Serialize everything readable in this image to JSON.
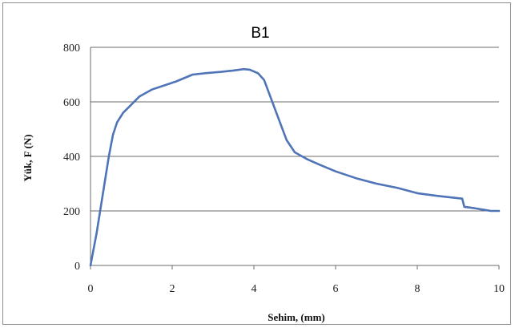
{
  "chart_data": {
    "type": "line",
    "title": "B1",
    "xlabel": "Sehim, (mm)",
    "ylabel": "Yük, F (N)",
    "xlim": [
      0,
      10
    ],
    "ylim": [
      0,
      800
    ],
    "xticks": [
      "0",
      "2",
      "4",
      "6",
      "8",
      "10"
    ],
    "yticks": [
      "0",
      "200",
      "400",
      "600",
      "800"
    ],
    "grid": "horizontal",
    "legend": "none",
    "series": [
      {
        "color": "#4f74b8",
        "x": [
          0,
          0.15,
          0.3,
          0.45,
          0.55,
          0.65,
          0.8,
          1.0,
          1.2,
          1.5,
          1.8,
          2.1,
          2.5,
          2.8,
          3.2,
          3.5,
          3.75,
          3.9,
          4.1,
          4.25,
          4.4,
          4.6,
          4.8,
          5.0,
          5.3,
          5.6,
          6.0,
          6.5,
          7.0,
          7.5,
          8.0,
          8.5,
          9.1,
          9.15,
          9.4,
          9.6,
          9.8,
          10.0
        ],
        "y": [
          0,
          120,
          260,
          400,
          480,
          525,
          560,
          590,
          620,
          645,
          660,
          675,
          700,
          705,
          710,
          715,
          720,
          718,
          705,
          680,
          620,
          540,
          460,
          415,
          390,
          370,
          345,
          320,
          300,
          285,
          265,
          255,
          245,
          215,
          210,
          205,
          200,
          200
        ]
      }
    ]
  }
}
